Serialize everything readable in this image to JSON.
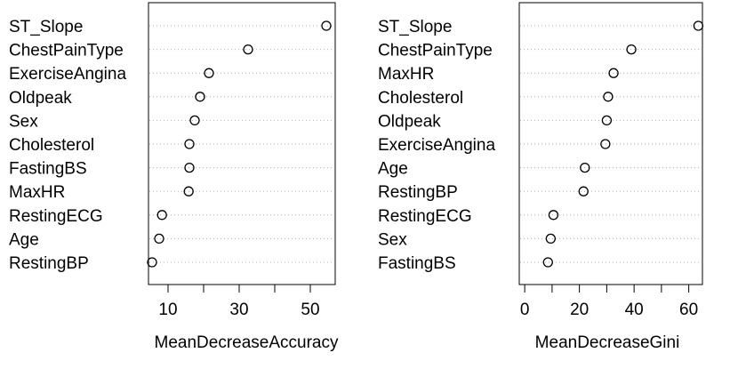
{
  "chart_data": [
    {
      "type": "dotchart",
      "xlabel": "MeanDecreaseAccuracy",
      "xlim": [
        4.5,
        57
      ],
      "xticks": [
        10,
        20,
        30,
        40,
        50
      ],
      "xtick_labels": [
        "10",
        "",
        "30",
        "",
        "50"
      ],
      "grid": "dotted horizontal lines",
      "categories": [
        "ST_Slope",
        "ChestPainType",
        "ExerciseAngina",
        "Oldpeak",
        "Sex",
        "Cholesterol",
        "FastingBS",
        "MaxHR",
        "RestingECG",
        "Age",
        "RestingBP"
      ],
      "values": [
        54.5,
        32.5,
        21.5,
        19,
        17.5,
        16,
        16,
        15.8,
        8.3,
        7.5,
        5.5
      ]
    },
    {
      "type": "dotchart",
      "xlabel": "MeanDecreaseGini",
      "xlim": [
        -2,
        65
      ],
      "xticks": [
        0,
        10,
        20,
        30,
        40,
        50,
        60
      ],
      "xtick_labels": [
        "0",
        "",
        "20",
        "",
        "40",
        "",
        "60"
      ],
      "grid": "dotted horizontal lines",
      "categories": [
        "ST_Slope",
        "ChestPainType",
        "MaxHR",
        "Cholesterol",
        "Oldpeak",
        "ExerciseAngina",
        "Age",
        "RestingBP",
        "RestingECG",
        "Sex",
        "FastingBS"
      ],
      "values": [
        63.5,
        39,
        32.5,
        30.5,
        30,
        29.5,
        22,
        21.5,
        10.5,
        9.5,
        8.5
      ]
    }
  ]
}
